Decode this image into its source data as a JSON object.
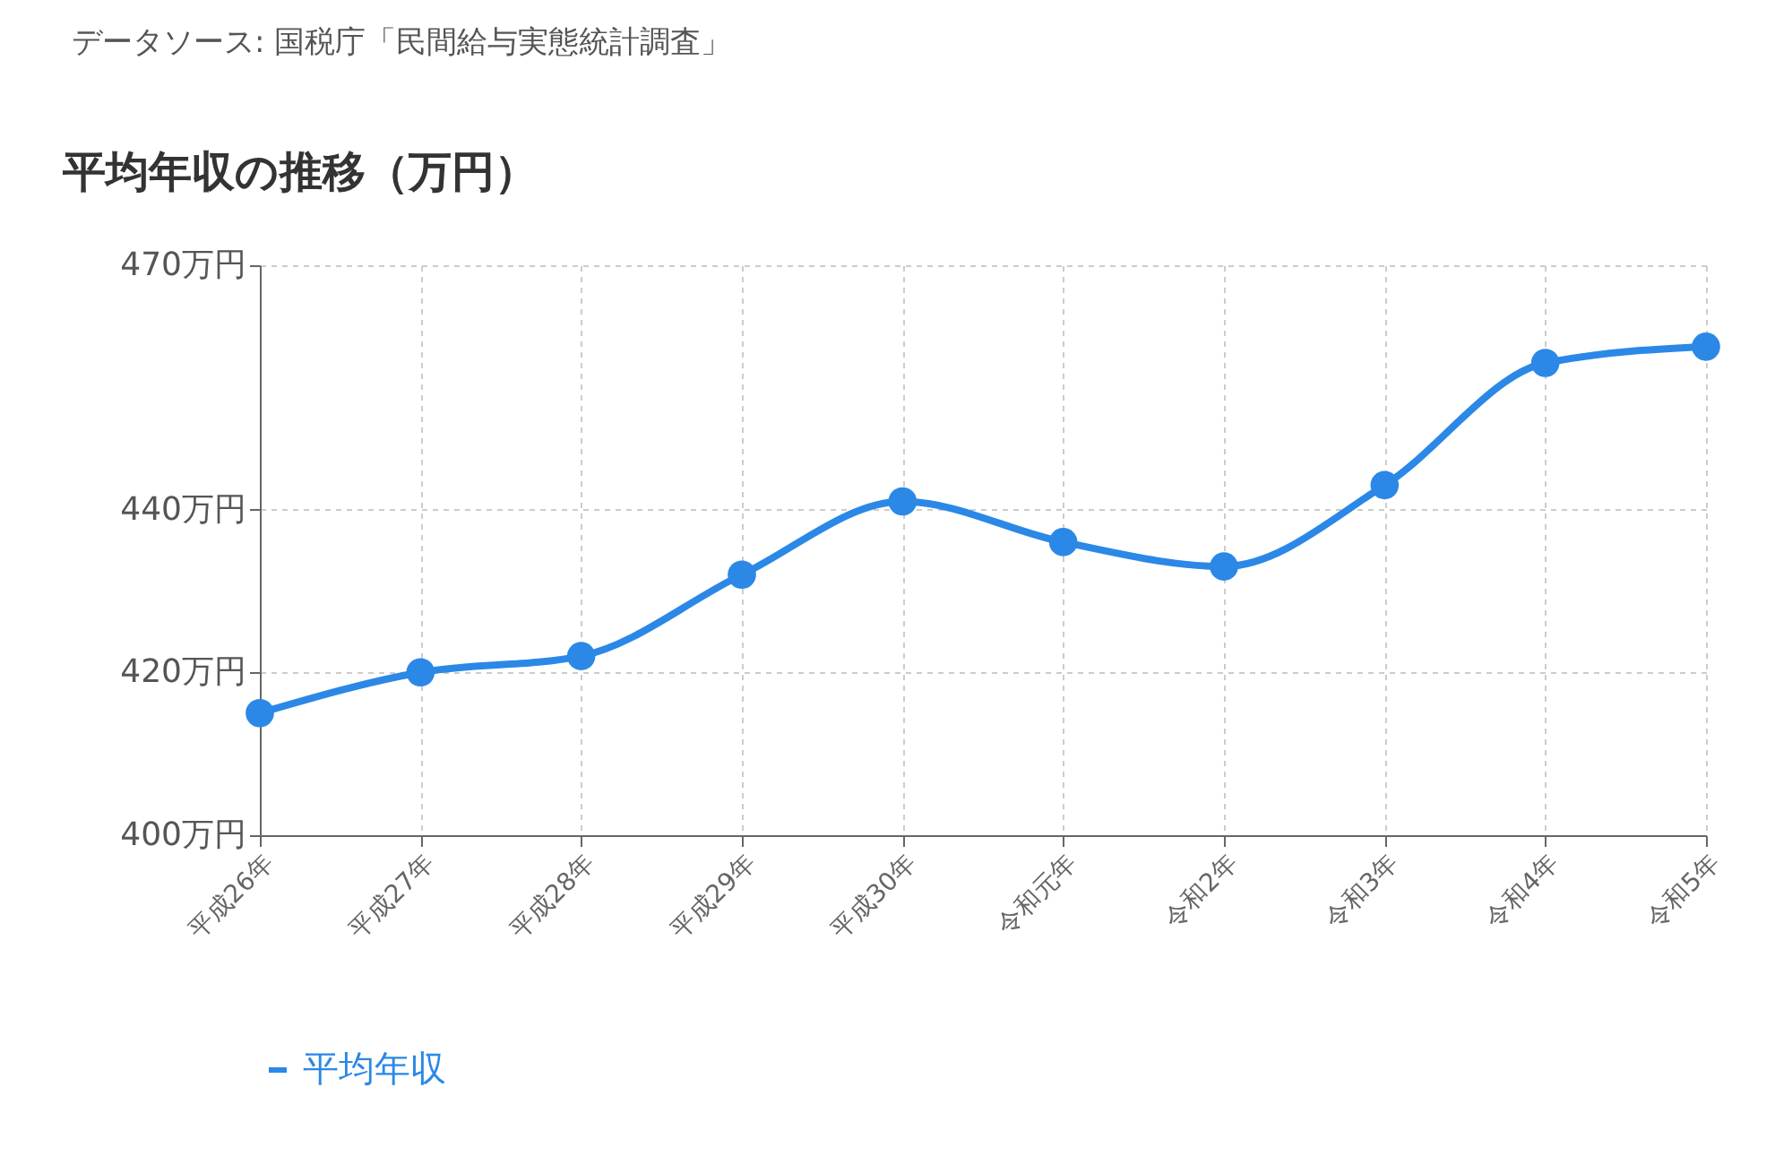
{
  "chart_data": {
    "type": "line",
    "title": "平均年収の推移（万円）",
    "annotations": [
      "データソース: 国税庁「民間給与実態統計調査」"
    ],
    "categories": [
      "平成26年",
      "平成27年",
      "平成28年",
      "平成29年",
      "平成30年",
      "令和元年",
      "令和2年",
      "令和3年",
      "令和4年",
      "令和5年"
    ],
    "series": [
      {
        "name": "平均年収",
        "color": "#2b88e6",
        "values": [
          415,
          420,
          422,
          432,
          441,
          436,
          433,
          443,
          458,
          460
        ]
      }
    ],
    "ylim": [
      400,
      470
    ],
    "yticks": [
      {
        "value": 400,
        "label": "400万円"
      },
      {
        "value": 420,
        "label": "420万円"
      },
      {
        "value": 440,
        "label": "440万円"
      },
      {
        "value": 470,
        "label": "470万円"
      }
    ],
    "grid": true,
    "legend": "bottom",
    "marker": "circle",
    "line_style": "solid"
  }
}
